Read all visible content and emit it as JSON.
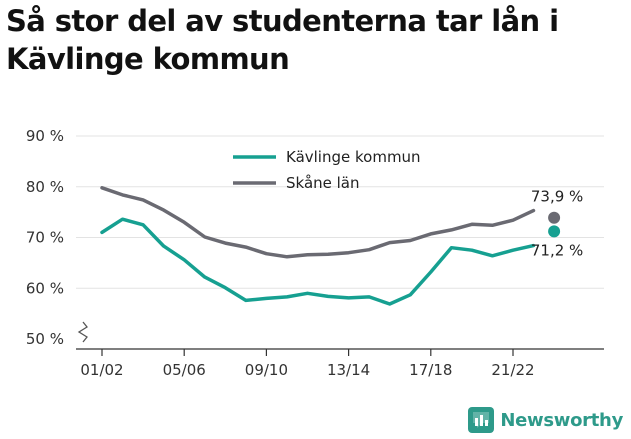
{
  "title": "Så stor del av studenterna tar lån i Kävlinge kommun",
  "brand": {
    "name": "Newsworthy",
    "icon": "newsworthy-logo-icon",
    "color": "#2e9a8a"
  },
  "chart_data": {
    "type": "line",
    "title": "Så stor del av studenterna tar lån i Kävlinge kommun",
    "xlabel": "",
    "ylabel": "",
    "x": [
      "01/02",
      "02/03",
      "03/04",
      "04/05",
      "05/06",
      "06/07",
      "07/08",
      "08/09",
      "09/10",
      "10/11",
      "11/12",
      "12/13",
      "13/14",
      "14/15",
      "15/16",
      "16/17",
      "17/18",
      "18/19",
      "19/20",
      "20/21",
      "21/22",
      "22/23",
      "23/24"
    ],
    "x_tick_labels": [
      "01/02",
      "05/06",
      "09/10",
      "13/14",
      "17/18",
      "21/22"
    ],
    "y_tick_labels": [
      "50 %",
      "60 %",
      "70 %",
      "80 %",
      "90 %"
    ],
    "ylim": [
      50,
      90
    ],
    "yticks": [
      50,
      60,
      70,
      80,
      90
    ],
    "y_axis_break": true,
    "grid": "horizontal",
    "legend_position": "top-center",
    "series": [
      {
        "name": "Kävlinge kommun",
        "color": "#16a091",
        "values": [
          71.0,
          73.6,
          72.5,
          68.3,
          65.6,
          62.2,
          60.1,
          57.6,
          58.0,
          58.3,
          59.0,
          58.4,
          58.1,
          58.3,
          56.9,
          58.7,
          63.2,
          68.0,
          67.5,
          66.4,
          67.5,
          68.4,
          71.2
        ],
        "end_label": "71,2 %"
      },
      {
        "name": "Skåne län",
        "color": "#6a6a72",
        "values": [
          79.8,
          78.4,
          77.4,
          75.4,
          73.0,
          70.1,
          68.9,
          68.1,
          66.8,
          66.2,
          66.6,
          66.7,
          67.0,
          67.6,
          69.0,
          69.4,
          70.7,
          71.5,
          72.6,
          72.4,
          73.4,
          75.3,
          73.9
        ],
        "end_label": "73,9 %"
      }
    ]
  }
}
